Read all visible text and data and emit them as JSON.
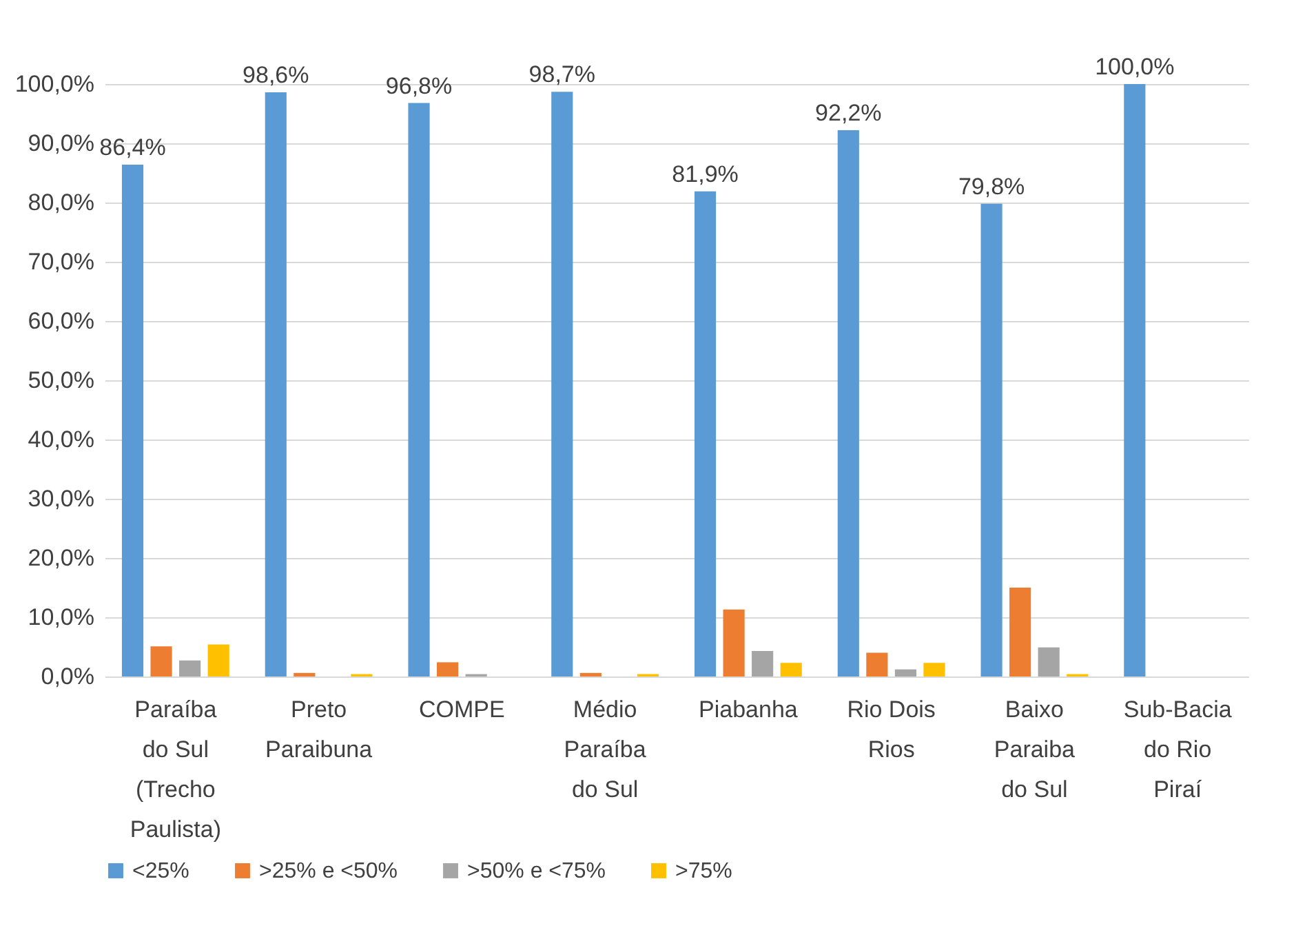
{
  "chart_data": {
    "type": "bar",
    "categories": [
      "Paraíba do Sul (Trecho Paulista)",
      "Preto Paraibuna",
      "COMPE",
      "Médio Paraíba do Sul",
      "Piabanha",
      "Rio Dois Rios",
      "Baixo Paraiba do Sul",
      "Sub-Bacia do Rio Piraí"
    ],
    "series": [
      {
        "name": "<25%",
        "color": "#5b9bd5",
        "values": [
          86.4,
          98.6,
          96.8,
          98.7,
          81.9,
          92.2,
          79.8,
          100.0
        ],
        "value_labels": [
          "86,4%",
          "98,6%",
          "96,8%",
          "98,7%",
          "81,9%",
          "92,2%",
          "79,8%",
          "100,0%"
        ]
      },
      {
        "name": ">25% e <50%",
        "color": "#ed7d31",
        "values": [
          5.1,
          0.6,
          2.4,
          0.6,
          11.3,
          4.0,
          15.0,
          0
        ]
      },
      {
        "name": ">50% e <75%",
        "color": "#a5a5a5",
        "values": [
          2.7,
          0,
          0.4,
          0,
          4.3,
          1.2,
          4.9,
          0
        ]
      },
      {
        "name": ">75%",
        "color": "#ffc000",
        "values": [
          5.4,
          0.4,
          0,
          0.4,
          2.3,
          2.3,
          0.4,
          0
        ]
      }
    ],
    "ylim": [
      0,
      100
    ],
    "yticks": [
      {
        "value": 0,
        "label": "0,0%"
      },
      {
        "value": 10,
        "label": "10,0%"
      },
      {
        "value": 20,
        "label": "20,0%"
      },
      {
        "value": 30,
        "label": "30,0%"
      },
      {
        "value": 40,
        "label": "40,0%"
      },
      {
        "value": 50,
        "label": "50,0%"
      },
      {
        "value": 60,
        "label": "60,0%"
      },
      {
        "value": 70,
        "label": "70,0%"
      },
      {
        "value": 80,
        "label": "80,0%"
      },
      {
        "value": 90,
        "label": "90,0%"
      },
      {
        "value": 100,
        "label": "100,0%"
      }
    ],
    "grid": true,
    "legend": "bottom"
  }
}
